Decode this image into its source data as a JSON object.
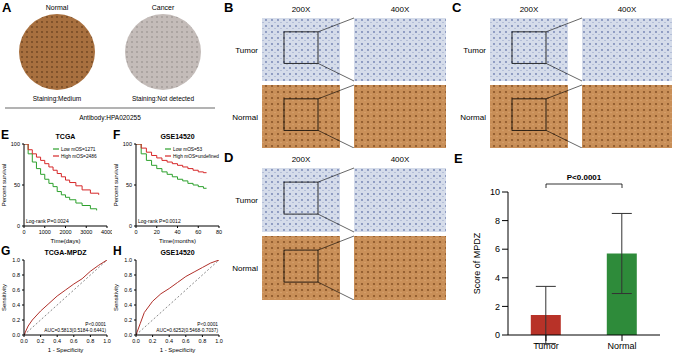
{
  "panels": {
    "A": {
      "label": "A",
      "images": [
        {
          "title": "Normal",
          "caption": "Staining:Medium"
        },
        {
          "title": "Cancer",
          "caption": "Staining:Not detected"
        }
      ],
      "footer": "Antibody:HPA020255"
    },
    "B": {
      "label": "B",
      "columns": [
        "200X",
        "400X"
      ],
      "rows": [
        "Tumor",
        "Normal"
      ]
    },
    "C": {
      "label": "C",
      "columns": [
        "200X",
        "400X"
      ],
      "rows": [
        "Tumor",
        "Normal"
      ]
    },
    "D": {
      "label": "D",
      "columns": [
        "200X",
        "400X"
      ],
      "rows": [
        "Tumor",
        "Normal"
      ]
    }
  },
  "chart_data": [
    {
      "panel": "E",
      "type": "line",
      "title": "TCGA",
      "xlabel": "Time(days)",
      "ylabel": "Percent survival",
      "xlim": [
        0,
        4000
      ],
      "xticks": [
        0,
        1000,
        2000,
        3000,
        4000
      ],
      "ylim": [
        0,
        100
      ],
      "yticks": [
        0,
        50,
        100
      ],
      "line_style": "step",
      "legend": "upper right",
      "annotations": [
        "Log-rank P=0.0024"
      ],
      "series": [
        {
          "name": "Low mOS=1271",
          "color": "#2ca02c",
          "x": [
            0,
            200,
            400,
            600,
            800,
            1000,
            1200,
            1400,
            1600,
            1800,
            2000,
            2200,
            2500,
            2800,
            3200,
            3500
          ],
          "values": [
            100,
            88,
            78,
            70,
            63,
            57,
            52,
            48,
            42,
            38,
            35,
            32,
            28,
            25,
            21,
            19
          ]
        },
        {
          "name": "High mOS=2486",
          "color": "#d62728",
          "x": [
            0,
            200,
            400,
            600,
            800,
            1000,
            1200,
            1400,
            1600,
            1800,
            2000,
            2200,
            2500,
            2800,
            3200,
            3600
          ],
          "values": [
            100,
            93,
            88,
            84,
            80,
            76,
            72,
            68,
            64,
            60,
            56,
            53,
            49,
            44,
            40,
            38
          ]
        }
      ]
    },
    {
      "panel": "F",
      "type": "line",
      "title": "GSE14520",
      "xlabel": "Time(months)",
      "ylabel": "Percent survival",
      "xlim": [
        0,
        80
      ],
      "xticks": [
        0,
        20,
        40,
        60,
        80
      ],
      "ylim": [
        0,
        100
      ],
      "yticks": [
        0,
        50,
        100
      ],
      "line_style": "step",
      "legend": "upper right",
      "annotations": [
        "Log-rank P=0.0012"
      ],
      "series": [
        {
          "name": "Low mOS=53",
          "color": "#2ca02c",
          "x": [
            0,
            5,
            10,
            15,
            20,
            25,
            30,
            35,
            40,
            45,
            50,
            55,
            60,
            65,
            68
          ],
          "values": [
            100,
            88,
            80,
            74,
            70,
            66,
            63,
            60,
            57,
            55,
            52,
            50,
            48,
            46,
            46
          ]
        },
        {
          "name": "High mOS=undefined",
          "color": "#d62728",
          "x": [
            0,
            5,
            10,
            15,
            20,
            25,
            30,
            35,
            40,
            45,
            50,
            55,
            60,
            65,
            68
          ],
          "values": [
            100,
            95,
            90,
            86,
            83,
            80,
            78,
            76,
            74,
            72,
            70,
            68,
            66,
            65,
            65
          ]
        }
      ]
    },
    {
      "panel": "E",
      "type": "bar",
      "ylabel": "Score of MPDZ",
      "categories": [
        "Tumor",
        "Normal"
      ],
      "values": [
        1.4,
        5.7
      ],
      "errors": [
        2.0,
        2.8
      ],
      "colors": [
        "#b83228",
        "#2e8b3a"
      ],
      "ylim": [
        0,
        10
      ],
      "yticks": [
        0,
        2,
        4,
        6,
        8,
        10
      ],
      "annotations": [
        "P<0.0001"
      ]
    },
    {
      "panel": "G",
      "type": "line",
      "title": "TCGA-MPDZ",
      "xlabel": "1 - Specificity",
      "ylabel": "Sensitivity",
      "xlim": [
        0,
        1
      ],
      "xticks": [
        {
          "value": 0,
          "label": "0.0"
        },
        0.2,
        0.4,
        0.6,
        0.8,
        {
          "value": 1,
          "label": "1.0"
        }
      ],
      "ylim": [
        0,
        1
      ],
      "yticks": [
        {
          "value": 0,
          "label": "0.0"
        },
        0.2,
        0.4,
        0.6,
        0.8,
        {
          "value": 1,
          "label": "1.0"
        }
      ],
      "line_style": "solid",
      "annotations": [
        "P<0.0001",
        "AUC=0.5813(0.5184-0.6441)"
      ],
      "series": [
        {
          "color": "#b0302a",
          "x": [
            0,
            0.05,
            0.1,
            0.2,
            0.3,
            0.4,
            0.5,
            0.6,
            0.7,
            0.8,
            0.9,
            1
          ],
          "values": [
            0,
            0.12,
            0.2,
            0.32,
            0.42,
            0.52,
            0.6,
            0.68,
            0.75,
            0.85,
            0.93,
            1
          ]
        }
      ]
    },
    {
      "panel": "H",
      "type": "line",
      "title": "GSE14520",
      "xlabel": "1 - Specificity",
      "ylabel": "Sensitivity",
      "xlim": [
        0,
        1
      ],
      "xticks": [
        {
          "value": 0,
          "label": "0.0"
        },
        0.2,
        0.4,
        0.6,
        0.8,
        {
          "value": 1,
          "label": "1.0"
        }
      ],
      "ylim": [
        0,
        1
      ],
      "yticks": [
        {
          "value": 0,
          "label": "0.0"
        },
        0.2,
        0.4,
        0.6,
        0.8,
        {
          "value": 1,
          "label": "1.0"
        }
      ],
      "line_style": "solid",
      "annotations": [
        "P<0.0001",
        "AUC=0.6252(0.5468-0.7037)"
      ],
      "series": [
        {
          "color": "#b0302a",
          "x": [
            0,
            0.05,
            0.1,
            0.2,
            0.3,
            0.4,
            0.5,
            0.6,
            0.7,
            0.8,
            0.9,
            1
          ],
          "values": [
            0,
            0.15,
            0.3,
            0.45,
            0.55,
            0.62,
            0.7,
            0.78,
            0.84,
            0.9,
            0.96,
            1
          ]
        }
      ]
    }
  ]
}
